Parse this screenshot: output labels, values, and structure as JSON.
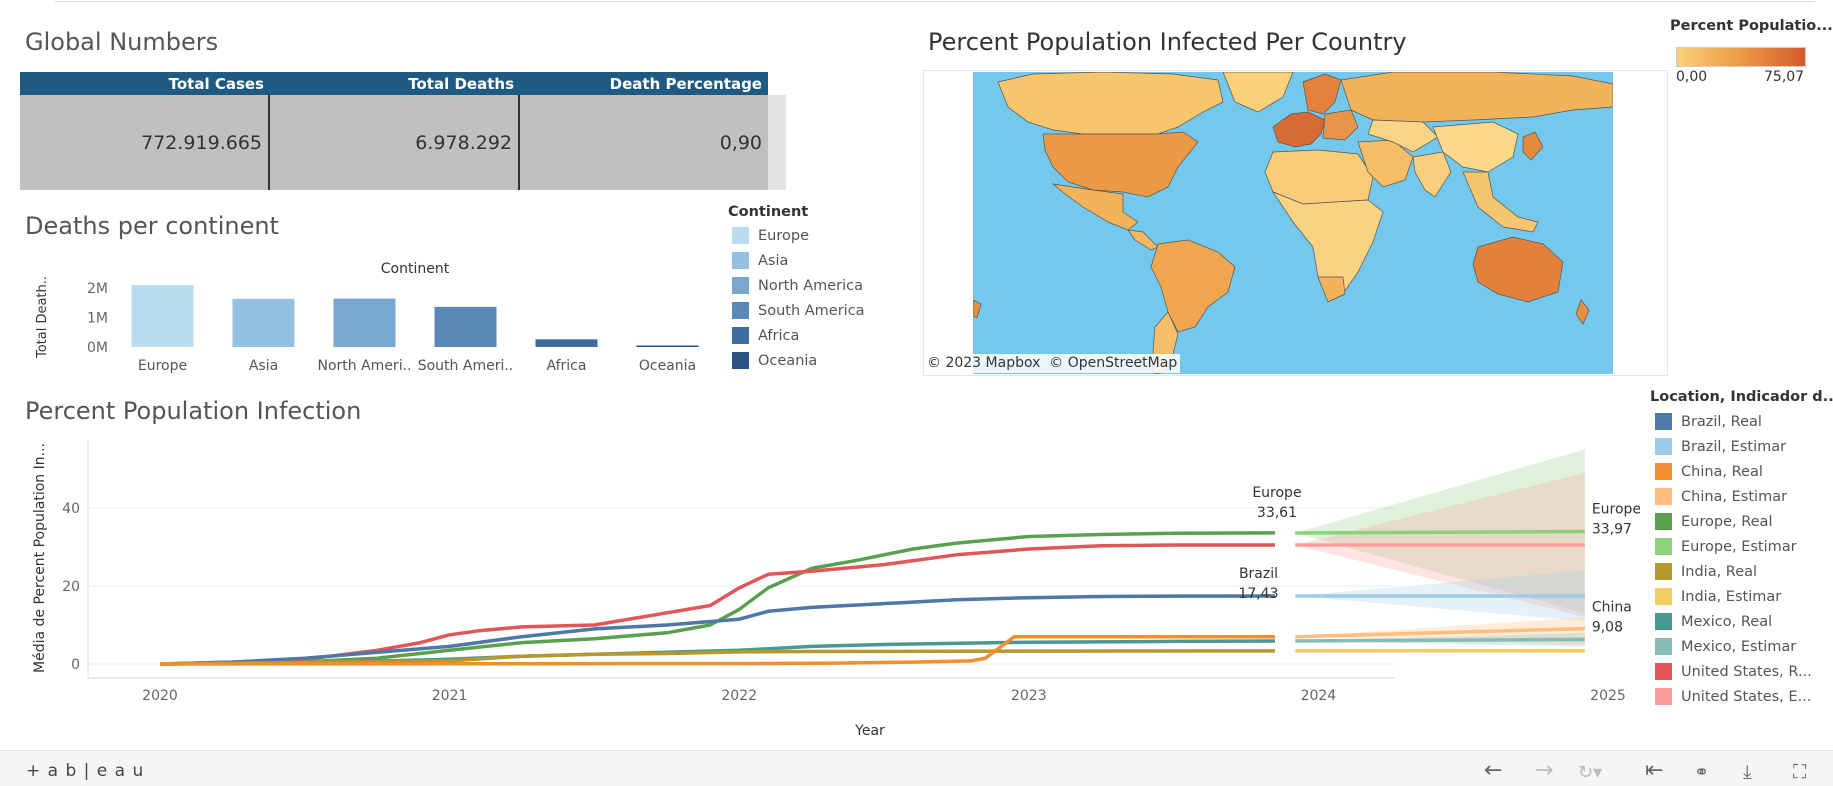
{
  "global_numbers": {
    "title": "Global Numbers",
    "headers": [
      "Total Cases",
      "Total Deaths",
      "Death Percentage"
    ],
    "values": [
      "772.919.665",
      "6.978.292",
      "0,90"
    ]
  },
  "deaths_chart": {
    "title": "Deaths per continent",
    "column_header": "Continent",
    "y_axis_label": "Total Death..",
    "y_ticks": [
      "2M",
      "1M",
      "0M"
    ],
    "x_labels": [
      "Europe",
      "Asia",
      "North Ameri..",
      "South Ameri..",
      "Africa",
      "Oceania"
    ]
  },
  "continent_legend": {
    "title": "Continent",
    "items": [
      {
        "label": "Europe",
        "color": "#b9dcf0"
      },
      {
        "label": "Asia",
        "color": "#95c1e0"
      },
      {
        "label": "North America",
        "color": "#78a8d0"
      },
      {
        "label": "South America",
        "color": "#5a89b8"
      },
      {
        "label": "Africa",
        "color": "#3f6c9f"
      },
      {
        "label": "Oceania",
        "color": "#2b5583"
      }
    ]
  },
  "map": {
    "title": "Percent Population Infected Per Country",
    "attribution": "© 2023 Mapbox  © OpenStreetMap",
    "legend_title": "Percent Populatio...",
    "legend_min": "0,00",
    "legend_max": "75,07",
    "ocean_color": "#73c8ec",
    "low_color": "#fbd07a",
    "high_color": "#d45a2e"
  },
  "infection_chart": {
    "title": "Percent Population Infection",
    "y_axis_label": "Média de Percent Population In...",
    "x_axis_label": "Year",
    "y_ticks": [
      "40",
      "20",
      "0"
    ],
    "x_ticks": [
      "2020",
      "2021",
      "2022",
      "2023",
      "2024",
      "2025"
    ],
    "annotations": [
      {
        "name": "Europe",
        "value": "33,61"
      },
      {
        "name": "Brazil",
        "value": "17,43"
      },
      {
        "name": "Europe",
        "value": "33,97"
      },
      {
        "name": "China",
        "value": "9,08"
      }
    ]
  },
  "series_legend": {
    "title": "Location, Indicador d...",
    "items": [
      {
        "label": "Brazil, Real",
        "color": "#4e79a7"
      },
      {
        "label": "Brazil, Estimar",
        "color": "#a0cbe8"
      },
      {
        "label": "China, Real",
        "color": "#f28e2b"
      },
      {
        "label": "China, Estimar",
        "color": "#ffbe7d"
      },
      {
        "label": "Europe, Real",
        "color": "#59a14f"
      },
      {
        "label": "Europe, Estimar",
        "color": "#8cd17d"
      },
      {
        "label": "India, Real",
        "color": "#b6992d"
      },
      {
        "label": "India, Estimar",
        "color": "#f1ce63"
      },
      {
        "label": "Mexico, Real",
        "color": "#499894"
      },
      {
        "label": "Mexico, Estimar",
        "color": "#86bcb6"
      },
      {
        "label": "United States, R...",
        "color": "#e15759"
      },
      {
        "label": "United States, E...",
        "color": "#ff9d9a"
      }
    ]
  },
  "footer": {
    "logo": "+ a b | e a u",
    "icons": [
      "undo-icon",
      "redo-icon",
      "revert-icon",
      "reset-icon",
      "share-icon",
      "download-icon",
      "fullscreen-icon"
    ]
  },
  "chart_data": [
    {
      "type": "bar",
      "title": "Deaths per continent",
      "xlabel": "Continent",
      "ylabel": "Total Death..",
      "categories": [
        "Europe",
        "Asia",
        "North America",
        "South America",
        "Africa",
        "Oceania"
      ],
      "values": [
        2100000,
        1630000,
        1640000,
        1360000,
        260000,
        30000
      ],
      "ylim": [
        0,
        2100000
      ],
      "colors": [
        "#b9dcf0",
        "#95c1e0",
        "#78a8d0",
        "#5a89b8",
        "#3f6c9f",
        "#2b5583"
      ]
    },
    {
      "type": "line",
      "title": "Percent Population Infection",
      "xlabel": "Year",
      "ylabel": "Média de Percent Population In...",
      "xlim": [
        2020,
        2025
      ],
      "ylim": [
        -3,
        55
      ],
      "real_series": [
        {
          "name": "Europe, Real",
          "color": "#59a14f",
          "x": [
            2020,
            2020.25,
            2020.5,
            2020.75,
            2021,
            2021.25,
            2021.5,
            2021.75,
            2021.9,
            2022,
            2022.1,
            2022.25,
            2022.4,
            2022.6,
            2022.75,
            2023,
            2023.25,
            2023.5,
            2023.85
          ],
          "y": [
            0,
            0.2,
            0.6,
            1.5,
            3.5,
            5.5,
            6.5,
            8,
            10,
            14,
            19.5,
            24.5,
            26.5,
            29.5,
            31,
            32.7,
            33.2,
            33.5,
            33.61
          ]
        },
        {
          "name": "United States, Real",
          "color": "#e15759",
          "x": [
            2020,
            2020.25,
            2020.5,
            2020.75,
            2020.9,
            2021,
            2021.1,
            2021.25,
            2021.5,
            2021.7,
            2021.9,
            2022,
            2022.1,
            2022.25,
            2022.5,
            2022.75,
            2023,
            2023.25,
            2023.5,
            2023.85
          ],
          "y": [
            0,
            0.5,
            1.2,
            3.5,
            5.5,
            7.5,
            8.5,
            9.5,
            10,
            12.5,
            15,
            19.5,
            23,
            23.8,
            25.5,
            28,
            29.5,
            30.3,
            30.5,
            30.5
          ]
        },
        {
          "name": "Brazil, Real",
          "color": "#4e79a7",
          "x": [
            2020,
            2020.25,
            2020.5,
            2020.75,
            2021,
            2021.25,
            2021.5,
            2021.75,
            2022,
            2022.1,
            2022.25,
            2022.5,
            2022.75,
            2023,
            2023.25,
            2023.5,
            2023.85
          ],
          "y": [
            0,
            0.5,
            1.5,
            3,
            4.5,
            7,
            9,
            10,
            11.5,
            13.5,
            14.5,
            15.5,
            16.5,
            17,
            17.3,
            17.4,
            17.43
          ]
        },
        {
          "name": "Mexico, Real",
          "color": "#499894",
          "x": [
            2020,
            2020.5,
            2021,
            2021.25,
            2021.5,
            2021.75,
            2022,
            2022.25,
            2022.5,
            2023,
            2023.5,
            2023.85
          ],
          "y": [
            0,
            0.3,
            1.2,
            2,
            2.5,
            3,
            3.5,
            4.5,
            5,
            5.6,
            5.8,
            5.9
          ]
        },
        {
          "name": "India, Real",
          "color": "#b6992d",
          "x": [
            2020,
            2020.5,
            2021,
            2021.25,
            2021.5,
            2021.75,
            2022,
            2022.25,
            2023,
            2023.85
          ],
          "y": [
            0,
            0.4,
            0.8,
            2,
            2.5,
            2.7,
            3.1,
            3.2,
            3.3,
            3.35
          ]
        },
        {
          "name": "China, Real",
          "color": "#f28e2b",
          "x": [
            2020,
            2021,
            2022,
            2022.3,
            2022.6,
            2022.8,
            2022.85,
            2022.95,
            2023.85
          ],
          "y": [
            0,
            0.05,
            0.1,
            0.2,
            0.5,
            0.8,
            1.5,
            7,
            7
          ]
        }
      ],
      "forecast_series": [
        {
          "name": "Europe, Estimar",
          "color": "#8cd17d",
          "start": 33.6,
          "end": 33.97,
          "band_low": 13,
          "band_high": 55
        },
        {
          "name": "United States, Estimar",
          "color": "#ff9d9a",
          "start": 30.5,
          "end": 30.5,
          "band_low": 12,
          "band_high": 49
        },
        {
          "name": "Brazil, Estimar",
          "color": "#a0cbe8",
          "start": 17.43,
          "end": 17.43,
          "band_low": 11,
          "band_high": 24
        },
        {
          "name": "China, Estimar",
          "color": "#ffbe7d",
          "start": 7,
          "end": 9.08,
          "band_low": 5,
          "band_high": 12
        },
        {
          "name": "Mexico, Estimar",
          "color": "#86bcb6",
          "start": 5.9,
          "end": 6.3,
          "band_low": 4.5,
          "band_high": 8
        },
        {
          "name": "India, Estimar",
          "color": "#f1ce63",
          "start": 3.35,
          "end": 3.4,
          "band_low": 2.8,
          "band_high": 4
        }
      ]
    }
  ]
}
